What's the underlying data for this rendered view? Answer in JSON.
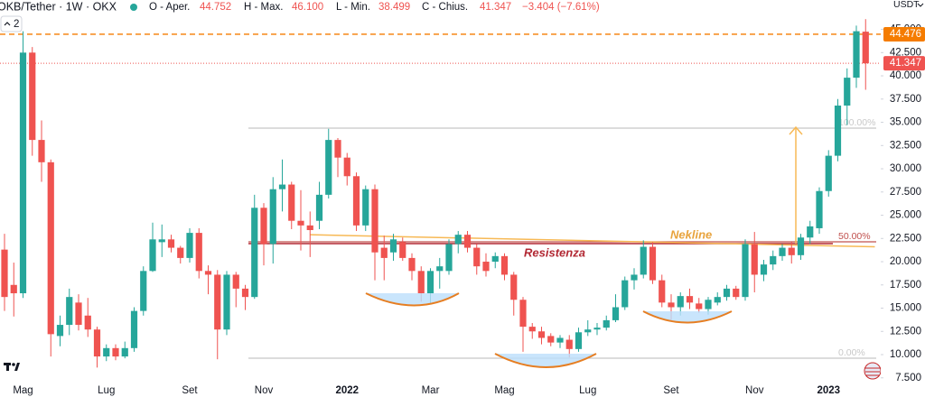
{
  "header": {
    "symbol": "OKB/Tether · 1W · OKX",
    "open_label": "O - Aper.",
    "open": "44.752",
    "high_label": "H - Max.",
    "high": "46.100",
    "low_label": "L - Min.",
    "low": "38.499",
    "close_label": "C - Chius.",
    "close": "41.347",
    "change": "−3.404 (−7.61%)",
    "layout_count": "2"
  },
  "chart_data": {
    "type": "candlestick",
    "y_axis_label": "USDT",
    "up_color": "#26a69a",
    "down_color": "#ef5350",
    "grid": false,
    "categories": [
      null,
      null,
      "Mag",
      null,
      null,
      null,
      null,
      null,
      null,
      null,
      null,
      "Lug",
      null,
      null,
      null,
      null,
      null,
      null,
      null,
      null,
      "Set",
      null,
      null,
      null,
      null,
      null,
      null,
      null,
      "Nov",
      null,
      null,
      null,
      null,
      null,
      null,
      null,
      null,
      "2022",
      null,
      null,
      null,
      null,
      null,
      null,
      null,
      null,
      "Mar",
      null,
      null,
      null,
      null,
      null,
      null,
      null,
      "Mag",
      null,
      null,
      null,
      null,
      null,
      null,
      null,
      null,
      "Lug",
      null,
      null,
      null,
      null,
      null,
      null,
      null,
      null,
      "Set",
      null,
      null,
      null,
      null,
      null,
      null,
      null,
      null,
      "Nov",
      null,
      null,
      null,
      null,
      null,
      null,
      null,
      "2023",
      null,
      null,
      null,
      null
    ],
    "open": [
      21.3,
      17.5,
      16.6,
      42.5,
      33.1,
      30.7,
      12.0,
      13.2,
      15.6,
      14.2,
      12.7,
      9.8,
      10.7,
      9.8,
      10.7,
      14.7,
      19.0,
      22.1,
      22.4,
      21.5,
      20.4,
      23.1,
      19.0,
      18.6,
      12.7,
      18.6,
      17.1,
      16.2,
      25.8,
      21.9,
      27.8,
      28.3,
      24.4,
      23.9,
      24.4,
      27.2,
      33.1,
      31.2,
      29.2,
      23.9,
      27.8,
      21.5,
      21.0,
      22.1,
      20.4,
      19.0,
      16.6,
      19.0,
      19.0,
      21.9,
      22.9,
      21.5,
      20.0,
      20.0,
      20.6,
      18.6,
      15.9,
      13.0,
      12.5,
      12.0,
      11.3,
      11.6,
      10.6,
      12.4,
      12.7,
      12.9,
      13.7,
      15.1,
      18.0,
      18.6,
      21.6,
      18.0,
      15.6,
      15.1,
      16.3,
      15.5,
      14.9,
      15.6,
      16.2,
      17.1,
      16.2,
      21.9,
      18.6,
      19.7,
      20.6,
      21.5,
      20.7,
      22.6,
      23.6,
      27.6,
      31.4,
      36.8,
      39.8,
      44.752
    ],
    "high": [
      23.0,
      19.9,
      44.8,
      43.1,
      35.2,
      31.0,
      14.2,
      17.1,
      16.5,
      16.1,
      13.0,
      11.1,
      11.1,
      11.4,
      15.1,
      19.5,
      24.2,
      24.0,
      22.9,
      21.7,
      23.6,
      23.6,
      19.6,
      19.1,
      19.0,
      18.9,
      17.5,
      27.2,
      26.3,
      29.1,
      31.0,
      28.6,
      27.7,
      25.4,
      28.6,
      34.3,
      33.3,
      31.7,
      29.6,
      28.2,
      28.3,
      22.8,
      23.0,
      22.6,
      20.9,
      19.5,
      19.3,
      20.4,
      22.4,
      23.3,
      23.3,
      21.9,
      20.9,
      21.0,
      20.9,
      18.9,
      16.2,
      13.4,
      13.0,
      12.3,
      12.1,
      12.1,
      12.9,
      13.7,
      13.4,
      14.2,
      16.5,
      18.4,
      19.3,
      22.3,
      22.1,
      18.6,
      16.5,
      16.7,
      17.1,
      16.1,
      16.2,
      16.7,
      17.5,
      17.4,
      22.4,
      23.2,
      20.2,
      21.2,
      21.9,
      22.1,
      23.0,
      24.4,
      28.0,
      32.0,
      37.5,
      40.8,
      45.4,
      46.1
    ],
    "low": [
      14.7,
      14.1,
      16.1,
      31.4,
      28.6,
      9.8,
      10.9,
      12.1,
      12.6,
      11.9,
      8.6,
      9.3,
      9.4,
      9.6,
      10.3,
      14.2,
      18.9,
      20.5,
      21.0,
      19.8,
      19.9,
      18.2,
      16.5,
      9.5,
      12.1,
      15.1,
      14.8,
      16.0,
      19.6,
      19.8,
      25.4,
      23.5,
      21.2,
      20.5,
      23.5,
      26.8,
      29.1,
      28.2,
      23.3,
      23.3,
      18.0,
      18.0,
      20.1,
      20.1,
      18.0,
      15.7,
      15.4,
      17.1,
      18.6,
      20.9,
      21.0,
      18.6,
      18.4,
      19.3,
      18.0,
      14.2,
      10.3,
      11.7,
      11.1,
      10.9,
      10.7,
      9.7,
      10.3,
      12.0,
      12.1,
      12.6,
      13.5,
      14.8,
      17.0,
      18.2,
      17.6,
      15.1,
      13.7,
      14.2,
      14.9,
      14.5,
      14.3,
      15.3,
      15.8,
      15.9,
      15.8,
      16.7,
      17.9,
      19.1,
      20.1,
      19.8,
      20.2,
      21.9,
      23.0,
      27.0,
      30.8,
      34.7,
      38.7,
      38.499
    ],
    "close": [
      16.2,
      16.6,
      42.5,
      33.1,
      30.7,
      12.2,
      13.2,
      16.2,
      13.2,
      12.7,
      9.8,
      10.7,
      9.8,
      10.7,
      14.7,
      19.0,
      22.4,
      22.4,
      21.5,
      20.4,
      23.1,
      19.0,
      18.6,
      12.7,
      18.6,
      17.1,
      16.2,
      25.8,
      21.9,
      27.8,
      28.3,
      24.4,
      23.9,
      23.4,
      27.2,
      33.1,
      31.2,
      29.2,
      23.9,
      27.8,
      21.0,
      20.4,
      22.4,
      20.4,
      19.0,
      16.6,
      19.0,
      19.5,
      21.9,
      22.9,
      21.5,
      19.5,
      19.0,
      20.6,
      18.6,
      15.9,
      13.0,
      12.5,
      11.8,
      11.3,
      11.8,
      10.6,
      12.4,
      12.7,
      12.9,
      13.7,
      15.1,
      18.0,
      18.6,
      21.6,
      18.0,
      15.6,
      15.1,
      16.3,
      15.6,
      14.9,
      15.9,
      16.2,
      17.1,
      16.2,
      21.9,
      18.6,
      19.7,
      20.6,
      21.5,
      20.7,
      22.6,
      23.8,
      27.6,
      31.4,
      36.8,
      39.8,
      44.8,
      41.347
    ],
    "ylim": [
      7.38,
      48.16
    ],
    "yticks": [
      {
        "value": 7.5,
        "label": "7.500"
      },
      {
        "value": 10,
        "label": "10.000"
      },
      {
        "value": 12.5,
        "label": "12.500"
      },
      {
        "value": 15,
        "label": "15.000"
      },
      {
        "value": 17.5,
        "label": "17.500"
      },
      {
        "value": 20,
        "label": "20.000"
      },
      {
        "value": 22.5,
        "label": "22.500"
      },
      {
        "value": 25,
        "label": "25.000"
      },
      {
        "value": 27.5,
        "label": "27.500"
      },
      {
        "value": 30,
        "label": "30.000"
      },
      {
        "value": 32.5,
        "label": "32.500"
      },
      {
        "value": 35,
        "label": "35.000"
      },
      {
        "value": 37.5,
        "label": "37.500"
      },
      {
        "value": 40,
        "label": "40.000"
      },
      {
        "value": 42.5,
        "label": "42.500"
      },
      {
        "value": 45,
        "label": "45.000"
      }
    ],
    "price_lines": [
      {
        "value": 44.476,
        "label": "44.476",
        "color": "#f57c00",
        "style": "dashed"
      },
      {
        "value": 41.347,
        "label": "41.347",
        "color": "#ef5350",
        "style": "dotted"
      }
    ],
    "levels": [
      {
        "value": 34.37,
        "label": "100.00%",
        "color": "#c8c8c8"
      },
      {
        "value": 22.14,
        "label": "50.00%",
        "color": "#c0504d"
      },
      {
        "value": 9.61,
        "label": "0.00%",
        "color": "#c8c8c8"
      }
    ],
    "resistance": {
      "value": 21.94,
      "label": "Resistenza",
      "color": "#b22833"
    },
    "trendline": {
      "label": "Nekline",
      "start": [
        33,
        22.9
      ],
      "end": [
        94,
        21.6
      ],
      "color": "#f7b955"
    }
  }
}
